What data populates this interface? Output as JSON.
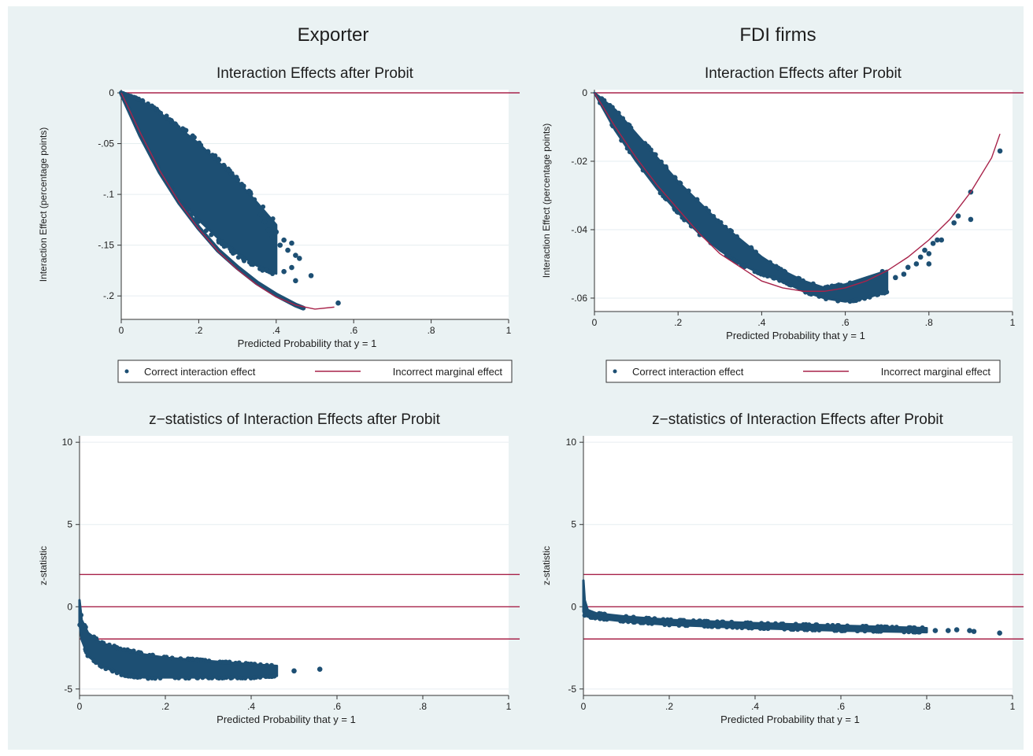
{
  "figure": {
    "column_titles": [
      "Exporter",
      "FDI firms"
    ]
  },
  "colors": {
    "background": "#eaf2f3",
    "plot_area": "#ffffff",
    "points": "#1d4f73",
    "reference_line": "#a8234a",
    "grid": "#e6eef0"
  },
  "legend": {
    "points_label": "Correct interaction effect",
    "line_label": "Incorrect marginal effect"
  },
  "chart_data": [
    {
      "id": "exporter-interaction",
      "type": "scatter",
      "title": "Interaction Effects after Probit",
      "xlabel": "Predicted Probability that y = 1",
      "ylabel": "Interaction Effect (percentage points)",
      "xlim": [
        0,
        1
      ],
      "ylim": [
        -0.22,
        0.0
      ],
      "xticks": [
        0,
        0.2,
        0.4,
        0.6,
        0.8,
        1
      ],
      "xticklabels": [
        "0",
        ".2",
        ".4",
        ".6",
        ".8",
        "1"
      ],
      "yticks": [
        0,
        -0.05,
        -0.1,
        -0.15,
        -0.2
      ],
      "yticklabels": [
        "0",
        "-.05",
        "-.1",
        "-.15",
        "-.2"
      ],
      "grid": true,
      "legend": "below",
      "reference_lines": [
        0
      ],
      "series": [
        {
          "name": "Correct interaction effect",
          "kind": "scatter-band",
          "upper": [
            [
              0,
              0
            ],
            [
              0.05,
              -0.008
            ],
            [
              0.1,
              -0.02
            ],
            [
              0.15,
              -0.035
            ],
            [
              0.2,
              -0.05
            ],
            [
              0.25,
              -0.068
            ],
            [
              0.3,
              -0.087
            ],
            [
              0.35,
              -0.108
            ],
            [
              0.4,
              -0.13
            ]
          ],
          "lower": [
            [
              0,
              0
            ],
            [
              0.05,
              -0.04
            ],
            [
              0.1,
              -0.075
            ],
            [
              0.15,
              -0.105
            ],
            [
              0.2,
              -0.125
            ],
            [
              0.25,
              -0.143
            ],
            [
              0.3,
              -0.158
            ],
            [
              0.35,
              -0.17
            ],
            [
              0.4,
              -0.178
            ]
          ],
          "scatter_points": [
            [
              0.36,
              -0.12
            ],
            [
              0.37,
              -0.127
            ],
            [
              0.38,
              -0.135
            ],
            [
              0.39,
              -0.142
            ],
            [
              0.4,
              -0.137
            ],
            [
              0.41,
              -0.15
            ],
            [
              0.42,
              -0.145
            ],
            [
              0.43,
              -0.155
            ],
            [
              0.44,
              -0.148
            ],
            [
              0.45,
              -0.16
            ],
            [
              0.46,
              -0.163
            ],
            [
              0.44,
              -0.172
            ],
            [
              0.42,
              -0.176
            ],
            [
              0.45,
              -0.185
            ],
            [
              0.49,
              -0.18
            ]
          ],
          "edge_curve": [
            [
              0,
              0
            ],
            [
              0.05,
              -0.042
            ],
            [
              0.1,
              -0.078
            ],
            [
              0.15,
              -0.108
            ],
            [
              0.2,
              -0.133
            ],
            [
              0.25,
              -0.155
            ],
            [
              0.3,
              -0.172
            ],
            [
              0.35,
              -0.187
            ],
            [
              0.4,
              -0.199
            ],
            [
              0.45,
              -0.209
            ],
            [
              0.47,
              -0.212
            ]
          ],
          "outliers": [
            [
              0.56,
              -0.207
            ]
          ]
        },
        {
          "name": "Incorrect marginal effect",
          "kind": "line",
          "points": [
            [
              0,
              0
            ],
            [
              0.05,
              -0.04
            ],
            [
              0.1,
              -0.077
            ],
            [
              0.15,
              -0.108
            ],
            [
              0.2,
              -0.134
            ],
            [
              0.25,
              -0.156
            ],
            [
              0.3,
              -0.174
            ],
            [
              0.35,
              -0.189
            ],
            [
              0.4,
              -0.201
            ],
            [
              0.45,
              -0.209
            ],
            [
              0.5,
              -0.213
            ],
            [
              0.55,
              -0.211
            ]
          ]
        }
      ]
    },
    {
      "id": "fdi-interaction",
      "type": "scatter",
      "title": "Interaction Effects after Probit",
      "xlabel": "Predicted Probability that y = 1",
      "ylabel": "Interaction Effect (percentage points)",
      "xlim": [
        0,
        1
      ],
      "ylim": [
        -0.063,
        0.0
      ],
      "xticks": [
        0,
        0.2,
        0.4,
        0.6,
        0.8,
        1
      ],
      "xticklabels": [
        "0",
        ".2",
        ".4",
        ".6",
        ".8",
        "1"
      ],
      "yticks": [
        0,
        -0.02,
        -0.04,
        -0.06
      ],
      "yticklabels": [
        "0",
        "-.02",
        "-.04",
        "-.06"
      ],
      "grid": true,
      "legend": "below",
      "reference_lines": [
        0
      ],
      "series": [
        {
          "name": "Correct interaction effect",
          "kind": "scatter-band",
          "upper": [
            [
              0,
              0
            ],
            [
              0.05,
              -0.005
            ],
            [
              0.1,
              -0.012
            ],
            [
              0.15,
              -0.019
            ],
            [
              0.2,
              -0.026
            ],
            [
              0.25,
              -0.032
            ],
            [
              0.3,
              -0.038
            ],
            [
              0.35,
              -0.043
            ],
            [
              0.4,
              -0.048
            ],
            [
              0.45,
              -0.052
            ],
            [
              0.5,
              -0.055
            ],
            [
              0.55,
              -0.057
            ],
            [
              0.6,
              -0.056
            ],
            [
              0.65,
              -0.054
            ],
            [
              0.7,
              -0.052
            ]
          ],
          "lower": [
            [
              0,
              0
            ],
            [
              0.05,
              -0.011
            ],
            [
              0.1,
              -0.02
            ],
            [
              0.15,
              -0.028
            ],
            [
              0.2,
              -0.035
            ],
            [
              0.25,
              -0.041
            ],
            [
              0.3,
              -0.046
            ],
            [
              0.35,
              -0.05
            ],
            [
              0.4,
              -0.053
            ],
            [
              0.45,
              -0.055
            ],
            [
              0.5,
              -0.058
            ],
            [
              0.55,
              -0.06
            ],
            [
              0.6,
              -0.061
            ],
            [
              0.65,
              -0.06
            ],
            [
              0.7,
              -0.058
            ]
          ],
          "scatter_points": [
            [
              0.72,
              -0.054
            ],
            [
              0.74,
              -0.053
            ],
            [
              0.75,
              -0.051
            ],
            [
              0.77,
              -0.05
            ],
            [
              0.78,
              -0.048
            ],
            [
              0.79,
              -0.046
            ],
            [
              0.8,
              -0.047
            ],
            [
              0.8,
              -0.05
            ],
            [
              0.81,
              -0.044
            ],
            [
              0.82,
              -0.043
            ],
            [
              0.83,
              -0.043
            ],
            [
              0.86,
              -0.038
            ],
            [
              0.87,
              -0.036
            ],
            [
              0.9,
              -0.037
            ],
            [
              0.9,
              -0.029
            ],
            [
              0.97,
              -0.017
            ]
          ],
          "outliers": []
        },
        {
          "name": "Incorrect marginal effect",
          "kind": "line",
          "points": [
            [
              0,
              0
            ],
            [
              0.05,
              -0.01
            ],
            [
              0.1,
              -0.019
            ],
            [
              0.15,
              -0.027
            ],
            [
              0.2,
              -0.034
            ],
            [
              0.25,
              -0.041
            ],
            [
              0.3,
              -0.047
            ],
            [
              0.35,
              -0.051
            ],
            [
              0.4,
              -0.055
            ],
            [
              0.45,
              -0.057
            ],
            [
              0.5,
              -0.058
            ],
            [
              0.55,
              -0.058
            ],
            [
              0.6,
              -0.057
            ],
            [
              0.65,
              -0.055
            ],
            [
              0.7,
              -0.052
            ],
            [
              0.75,
              -0.048
            ],
            [
              0.8,
              -0.043
            ],
            [
              0.85,
              -0.037
            ],
            [
              0.9,
              -0.029
            ],
            [
              0.95,
              -0.019
            ],
            [
              0.97,
              -0.012
            ]
          ]
        }
      ]
    },
    {
      "id": "exporter-zstat",
      "type": "scatter",
      "title": "z−statistics of Interaction Effects after Probit",
      "xlabel": "Predicted Probability that y = 1",
      "ylabel": "z-statistic",
      "xlim": [
        0,
        1
      ],
      "ylim": [
        -5.2,
        10.2
      ],
      "xticks": [
        0,
        0.2,
        0.4,
        0.6,
        0.8,
        1
      ],
      "xticklabels": [
        "0",
        ".2",
        ".4",
        ".6",
        ".8",
        "1"
      ],
      "yticks": [
        10,
        5,
        0,
        -5
      ],
      "yticklabels": [
        "10",
        "5",
        "0",
        "-5"
      ],
      "grid": true,
      "reference_lines": [
        1.96,
        0,
        -1.96
      ],
      "series": [
        {
          "name": "z-statistic",
          "kind": "scatter-band",
          "upper": [
            [
              0,
              0.4
            ],
            [
              0.005,
              -0.8
            ],
            [
              0.02,
              -1.6
            ],
            [
              0.05,
              -2.2
            ],
            [
              0.1,
              -2.6
            ],
            [
              0.15,
              -2.9
            ],
            [
              0.2,
              -3.1
            ],
            [
              0.3,
              -3.3
            ],
            [
              0.4,
              -3.5
            ],
            [
              0.46,
              -3.6
            ]
          ],
          "lower": [
            [
              0,
              -1.0
            ],
            [
              0.005,
              -2.0
            ],
            [
              0.02,
              -3.0
            ],
            [
              0.05,
              -3.6
            ],
            [
              0.1,
              -4.1
            ],
            [
              0.15,
              -4.3
            ],
            [
              0.2,
              -4.3
            ],
            [
              0.3,
              -4.3
            ],
            [
              0.4,
              -4.3
            ],
            [
              0.46,
              -4.2
            ]
          ],
          "scatter_points": [
            [
              0.5,
              -3.9
            ],
            [
              0.56,
              -3.8
            ]
          ],
          "outliers": []
        }
      ]
    },
    {
      "id": "fdi-zstat",
      "type": "scatter",
      "title": "z−statistics of Interaction Effects after Probit",
      "xlabel": "Predicted Probability that y = 1",
      "ylabel": "z-statistic",
      "xlim": [
        0,
        1
      ],
      "ylim": [
        -5.2,
        10.2
      ],
      "xticks": [
        0,
        0.2,
        0.4,
        0.6,
        0.8,
        1
      ],
      "xticklabels": [
        "0",
        ".2",
        ".4",
        ".6",
        ".8",
        "1"
      ],
      "yticks": [
        10,
        5,
        0,
        -5
      ],
      "yticklabels": [
        "10",
        "5",
        "0",
        "-5"
      ],
      "grid": true,
      "reference_lines": [
        1.96,
        0,
        -1.96
      ],
      "series": [
        {
          "name": "z-statistic",
          "kind": "scatter-band",
          "upper": [
            [
              0,
              1.6
            ],
            [
              0.003,
              0.4
            ],
            [
              0.01,
              -0.2
            ],
            [
              0.03,
              -0.4
            ],
            [
              0.1,
              -0.6
            ],
            [
              0.2,
              -0.8
            ],
            [
              0.4,
              -1.0
            ],
            [
              0.6,
              -1.15
            ],
            [
              0.8,
              -1.3
            ]
          ],
          "lower": [
            [
              0,
              -0.3
            ],
            [
              0.003,
              -0.5
            ],
            [
              0.01,
              -0.6
            ],
            [
              0.03,
              -0.7
            ],
            [
              0.1,
              -0.9
            ],
            [
              0.2,
              -1.1
            ],
            [
              0.4,
              -1.3
            ],
            [
              0.6,
              -1.45
            ],
            [
              0.8,
              -1.55
            ]
          ],
          "scatter_points": [
            [
              0.82,
              -1.45
            ],
            [
              0.85,
              -1.45
            ],
            [
              0.87,
              -1.4
            ],
            [
              0.9,
              -1.45
            ],
            [
              0.91,
              -1.5
            ],
            [
              0.97,
              -1.6
            ]
          ],
          "outliers": []
        }
      ]
    }
  ]
}
